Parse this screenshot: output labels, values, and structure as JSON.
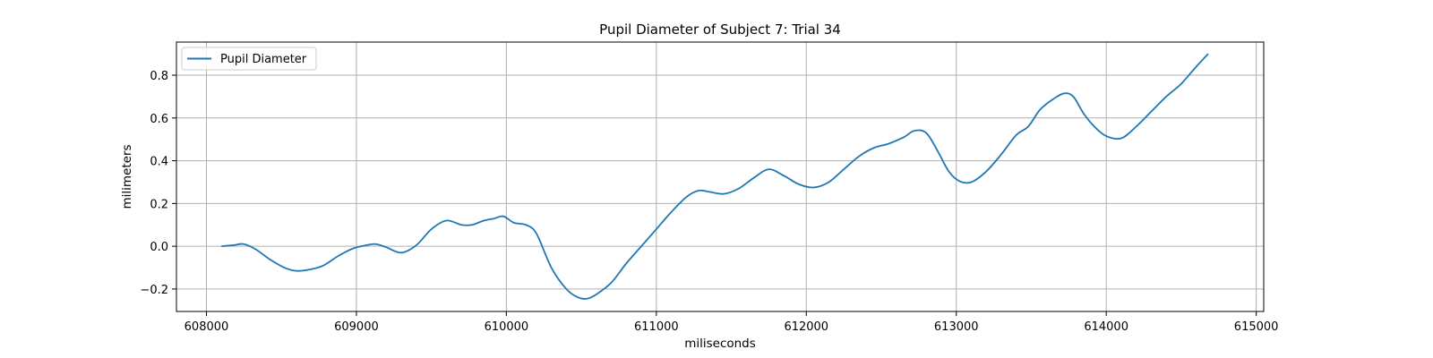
{
  "chart_data": {
    "type": "line",
    "title": "Pupil Diameter of Subject 7: Trial 34",
    "xlabel": "miliseconds",
    "ylabel": "milimeters",
    "xlim": [
      607800,
      615050
    ],
    "ylim": [
      -0.305,
      0.955
    ],
    "xticks": [
      608000,
      609000,
      610000,
      611000,
      612000,
      613000,
      614000,
      615000
    ],
    "yticks": [
      -0.2,
      0.0,
      0.2,
      0.4,
      0.6,
      0.8
    ],
    "ytick_labels": [
      "−0.2",
      "0.0",
      "0.2",
      "0.4",
      "0.6",
      "0.8"
    ],
    "grid": true,
    "legend_position": "upper-left",
    "series": [
      {
        "name": "Pupil Diameter",
        "color": "#1f77b4",
        "x": [
          608100,
          608180,
          608250,
          608330,
          608420,
          608520,
          608600,
          608680,
          608780,
          608880,
          608980,
          609070,
          609130,
          609200,
          609300,
          609400,
          609500,
          609600,
          609700,
          609770,
          609850,
          609920,
          609980,
          610050,
          610130,
          610200,
          610300,
          610400,
          610480,
          610540,
          610600,
          610700,
          610800,
          610900,
          611000,
          611100,
          611200,
          611280,
          611350,
          611450,
          611550,
          611650,
          611750,
          611850,
          611950,
          612050,
          612150,
          612250,
          612350,
          612450,
          612550,
          612650,
          612720,
          612800,
          612880,
          612950,
          613020,
          613100,
          613200,
          613300,
          613400,
          613480,
          613560,
          613650,
          613720,
          613780,
          613850,
          613920,
          614000,
          614100,
          614200,
          614300,
          614400,
          614500,
          614600,
          614680
        ],
        "values": [
          0.0,
          0.005,
          0.01,
          -0.015,
          -0.06,
          -0.1,
          -0.115,
          -0.11,
          -0.09,
          -0.045,
          -0.01,
          0.005,
          0.01,
          -0.005,
          -0.03,
          0.005,
          0.08,
          0.12,
          0.1,
          0.1,
          0.12,
          0.13,
          0.14,
          0.11,
          0.1,
          0.06,
          -0.1,
          -0.2,
          -0.24,
          -0.245,
          -0.225,
          -0.17,
          -0.08,
          0.0,
          0.08,
          0.16,
          0.23,
          0.26,
          0.255,
          0.245,
          0.27,
          0.32,
          0.36,
          0.33,
          0.29,
          0.275,
          0.3,
          0.36,
          0.42,
          0.46,
          0.48,
          0.51,
          0.54,
          0.53,
          0.44,
          0.35,
          0.305,
          0.3,
          0.35,
          0.43,
          0.52,
          0.56,
          0.64,
          0.69,
          0.715,
          0.7,
          0.62,
          0.56,
          0.515,
          0.505,
          0.56,
          0.63,
          0.7,
          0.76,
          0.84,
          0.9
        ]
      }
    ]
  }
}
